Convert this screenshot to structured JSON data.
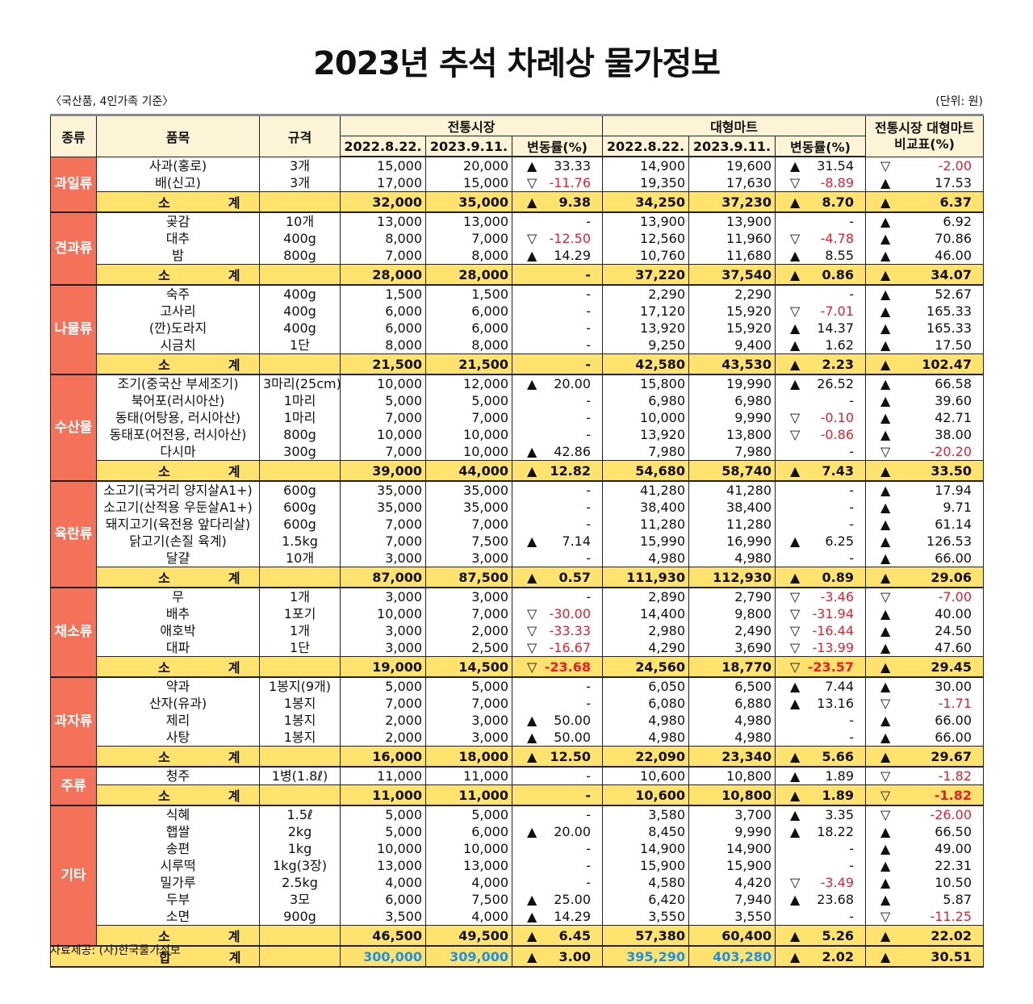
{
  "title": "2023년 추석 차례상 물가정보",
  "note_left": "〈국산품, 4인가족 기준〉",
  "note_right": "(단위: 원)",
  "source": "자료제공: (사)한국물가정보",
  "colors": {
    "category_bg": "#f4725a",
    "subtotal_bg": "#ffe36e",
    "header_bg": "#fdf4d8",
    "negative": "#e8202a",
    "total_blue": "#1e90e8"
  },
  "icons": {
    "up": "filled-triangle-up",
    "down": "hollow-triangle-down"
  },
  "headers": {
    "category": "종류",
    "item": "품목",
    "spec": "규격",
    "traditional": "전통시장",
    "mart": "대형마트",
    "compare_line1": "전통시장 대형마트",
    "compare_line2": "비교표(%)",
    "date1": "2022.8.22.",
    "date2": "2023.9.11.",
    "change": "변동률(%)"
  },
  "subtotal_label": "소계",
  "total_label": "합계",
  "groups": [
    {
      "name": "과일류",
      "items": [
        [
          "사과(홍로)",
          "3개",
          "15,000",
          "20,000",
          "up",
          "33.33",
          "14,900",
          "19,600",
          "up",
          "31.54",
          "down",
          "-2.00"
        ],
        [
          "배(신고)",
          "3개",
          "17,000",
          "15,000",
          "down",
          "-11.76",
          "19,350",
          "17,630",
          "down",
          "-8.89",
          "up",
          "17.53"
        ]
      ],
      "subtotal": [
        "32,000",
        "35,000",
        "up",
        "9.38",
        "34,250",
        "37,230",
        "up",
        "8.70",
        "up",
        "6.37"
      ]
    },
    {
      "name": "견과류",
      "items": [
        [
          "곶감",
          "10개",
          "13,000",
          "13,000",
          "",
          "-",
          "13,900",
          "13,900",
          "",
          "-",
          "up",
          "6.92"
        ],
        [
          "대추",
          "400g",
          "8,000",
          "7,000",
          "down",
          "-12.50",
          "12,560",
          "11,960",
          "down",
          "-4.78",
          "up",
          "70.86"
        ],
        [
          "밤",
          "800g",
          "7,000",
          "8,000",
          "up",
          "14.29",
          "10,760",
          "11,680",
          "up",
          "8.55",
          "up",
          "46.00"
        ]
      ],
      "subtotal": [
        "28,000",
        "28,000",
        "",
        "-",
        "37,220",
        "37,540",
        "up",
        "0.86",
        "up",
        "34.07"
      ]
    },
    {
      "name": "나물류",
      "items": [
        [
          "숙주",
          "400g",
          "1,500",
          "1,500",
          "",
          "-",
          "2,290",
          "2,290",
          "",
          "-",
          "up",
          "52.67"
        ],
        [
          "고사리",
          "400g",
          "6,000",
          "6,000",
          "",
          "-",
          "17,120",
          "15,920",
          "down",
          "-7.01",
          "up",
          "165.33"
        ],
        [
          "(깐)도라지",
          "400g",
          "6,000",
          "6,000",
          "",
          "-",
          "13,920",
          "15,920",
          "up",
          "14.37",
          "up",
          "165.33"
        ],
        [
          "시금치",
          "1단",
          "8,000",
          "8,000",
          "",
          "-",
          "9,250",
          "9,400",
          "up",
          "1.62",
          "up",
          "17.50"
        ]
      ],
      "subtotal": [
        "21,500",
        "21,500",
        "",
        "-",
        "42,580",
        "43,530",
        "up",
        "2.23",
        "up",
        "102.47"
      ]
    },
    {
      "name": "수산물",
      "items": [
        [
          "조기(중국산 부세조기)",
          "3마리(25cm)",
          "10,000",
          "12,000",
          "up",
          "20.00",
          "15,800",
          "19,990",
          "up",
          "26.52",
          "up",
          "66.58"
        ],
        [
          "북어포(러시아산)",
          "1마리",
          "5,000",
          "5,000",
          "",
          "-",
          "6,980",
          "6,980",
          "",
          "-",
          "up",
          "39.60"
        ],
        [
          "동태(어탕용, 러시아산)",
          "1마리",
          "7,000",
          "7,000",
          "",
          "-",
          "10,000",
          "9,990",
          "down",
          "-0.10",
          "up",
          "42.71"
        ],
        [
          "동태포(어전용, 러시아산)",
          "800g",
          "10,000",
          "10,000",
          "",
          "-",
          "13,920",
          "13,800",
          "down",
          "-0.86",
          "up",
          "38.00"
        ],
        [
          "다시마",
          "300g",
          "7,000",
          "10,000",
          "up",
          "42.86",
          "7,980",
          "7,980",
          "",
          "-",
          "down",
          "-20.20"
        ]
      ],
      "subtotal": [
        "39,000",
        "44,000",
        "up",
        "12.82",
        "54,680",
        "58,740",
        "up",
        "7.43",
        "up",
        "33.50"
      ]
    },
    {
      "name": "육란류",
      "items": [
        [
          "소고기(국거리 양지살A1+)",
          "600g",
          "35,000",
          "35,000",
          "",
          "-",
          "41,280",
          "41,280",
          "",
          "-",
          "up",
          "17.94"
        ],
        [
          "소고기(산적용 우둔살A1+)",
          "600g",
          "35,000",
          "35,000",
          "",
          "-",
          "38,400",
          "38,400",
          "",
          "-",
          "up",
          "9.71"
        ],
        [
          "돼지고기(육전용 앞다리살)",
          "600g",
          "7,000",
          "7,000",
          "",
          "-",
          "11,280",
          "11,280",
          "",
          "-",
          "up",
          "61.14"
        ],
        [
          "닭고기(손질 육계)",
          "1.5kg",
          "7,000",
          "7,500",
          "up",
          "7.14",
          "15,990",
          "16,990",
          "up",
          "6.25",
          "up",
          "126.53"
        ],
        [
          "달걀",
          "10개",
          "3,000",
          "3,000",
          "",
          "-",
          "4,980",
          "4,980",
          "",
          "-",
          "up",
          "66.00"
        ]
      ],
      "subtotal": [
        "87,000",
        "87,500",
        "up",
        "0.57",
        "111,930",
        "112,930",
        "up",
        "0.89",
        "up",
        "29.06"
      ]
    },
    {
      "name": "채소류",
      "items": [
        [
          "무",
          "1개",
          "3,000",
          "3,000",
          "",
          "-",
          "2,890",
          "2,790",
          "down",
          "-3.46",
          "down",
          "-7.00"
        ],
        [
          "배추",
          "1포기",
          "10,000",
          "7,000",
          "down",
          "-30.00",
          "14,400",
          "9,800",
          "down",
          "-31.94",
          "up",
          "40.00"
        ],
        [
          "애호박",
          "1개",
          "3,000",
          "2,000",
          "down",
          "-33.33",
          "2,980",
          "2,490",
          "down",
          "-16.44",
          "up",
          "24.50"
        ],
        [
          "대파",
          "1단",
          "3,000",
          "2,500",
          "down",
          "-16.67",
          "4,290",
          "3,690",
          "down",
          "-13.99",
          "up",
          "47.60"
        ]
      ],
      "subtotal": [
        "19,000",
        "14,500",
        "down",
        "-23.68",
        "24,560",
        "18,770",
        "down",
        "-23.57",
        "up",
        "29.45"
      ]
    },
    {
      "name": "과자류",
      "items": [
        [
          "약과",
          "1봉지(9개)",
          "5,000",
          "5,000",
          "",
          "-",
          "6,050",
          "6,500",
          "up",
          "7.44",
          "up",
          "30.00"
        ],
        [
          "산자(유과)",
          "1봉지",
          "7,000",
          "7,000",
          "",
          "-",
          "6,080",
          "6,880",
          "up",
          "13.16",
          "down",
          "-1.71"
        ],
        [
          "제리",
          "1봉지",
          "2,000",
          "3,000",
          "up",
          "50.00",
          "4,980",
          "4,980",
          "",
          "-",
          "up",
          "66.00"
        ],
        [
          "사탕",
          "1봉지",
          "2,000",
          "3,000",
          "up",
          "50.00",
          "4,980",
          "4,980",
          "",
          "-",
          "up",
          "66.00"
        ]
      ],
      "subtotal": [
        "16,000",
        "18,000",
        "up",
        "12.50",
        "22,090",
        "23,340",
        "up",
        "5.66",
        "up",
        "29.67"
      ]
    },
    {
      "name": "주류",
      "items": [
        [
          "청주",
          "1병(1.8ℓ)",
          "11,000",
          "11,000",
          "",
          "-",
          "10,600",
          "10,800",
          "up",
          "1.89",
          "down",
          "-1.82"
        ]
      ],
      "subtotal": [
        "11,000",
        "11,000",
        "",
        "-",
        "10,600",
        "10,800",
        "up",
        "1.89",
        "down",
        "-1.82"
      ]
    },
    {
      "name": "기타",
      "items": [
        [
          "식혜",
          "1.5ℓ",
          "5,000",
          "5,000",
          "",
          "-",
          "3,580",
          "3,700",
          "up",
          "3.35",
          "down",
          "-26.00"
        ],
        [
          "햅쌀",
          "2kg",
          "5,000",
          "6,000",
          "up",
          "20.00",
          "8,450",
          "9,990",
          "up",
          "18.22",
          "up",
          "66.50"
        ],
        [
          "송편",
          "1kg",
          "10,000",
          "10,000",
          "",
          "-",
          "14,900",
          "14,900",
          "",
          "-",
          "up",
          "49.00"
        ],
        [
          "시루떡",
          "1kg(3장)",
          "13,000",
          "13,000",
          "",
          "-",
          "15,900",
          "15,900",
          "",
          "-",
          "up",
          "22.31"
        ],
        [
          "밀가루",
          "2.5kg",
          "4,000",
          "4,000",
          "",
          "-",
          "4,580",
          "4,420",
          "down",
          "-3.49",
          "up",
          "10.50"
        ],
        [
          "두부",
          "3모",
          "6,000",
          "7,500",
          "up",
          "25.00",
          "6,420",
          "7,940",
          "up",
          "23.68",
          "up",
          "5.87"
        ],
        [
          "소면",
          "900g",
          "3,500",
          "4,000",
          "up",
          "14.29",
          "3,550",
          "3,550",
          "",
          "-",
          "down",
          "-11.25"
        ]
      ],
      "subtotal": [
        "46,500",
        "49,500",
        "up",
        "6.45",
        "57,380",
        "60,400",
        "up",
        "5.26",
        "up",
        "22.02"
      ]
    }
  ],
  "total": [
    "300,000",
    "309,000",
    "up",
    "3.00",
    "395,290",
    "403,280",
    "up",
    "2.02",
    "up",
    "30.51"
  ]
}
